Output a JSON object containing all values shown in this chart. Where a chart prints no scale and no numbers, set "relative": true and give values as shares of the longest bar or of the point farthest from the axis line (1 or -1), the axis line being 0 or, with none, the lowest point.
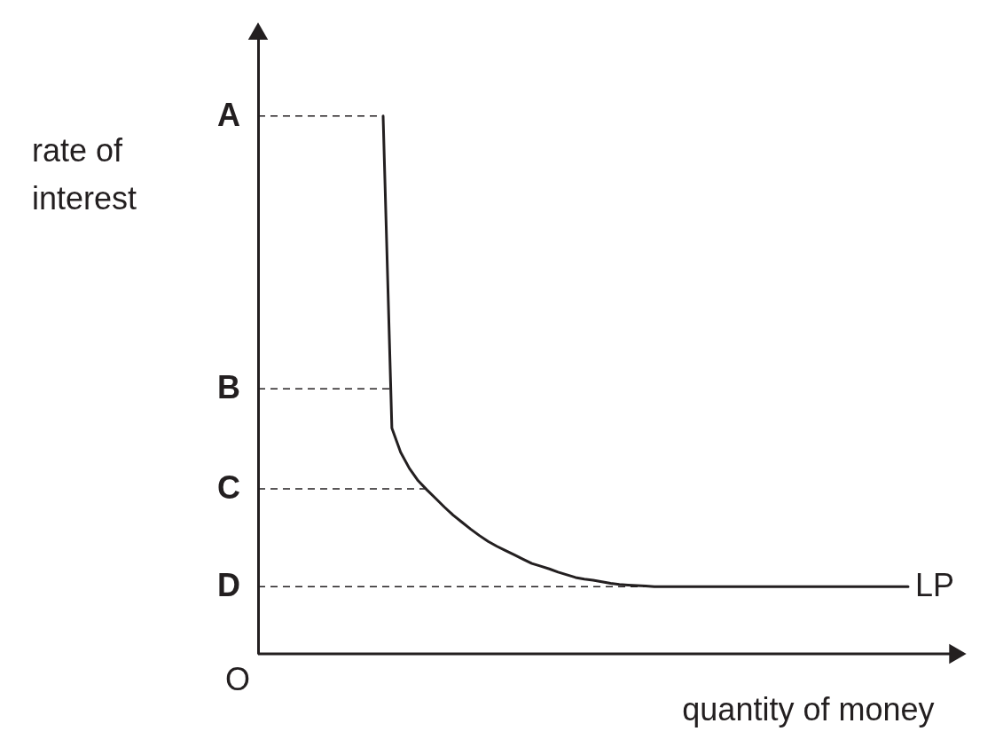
{
  "chart_data": {
    "type": "line",
    "relative": true,
    "xlabel": "quantity of money",
    "categories": [
      null,
      null,
      null,
      null,
      null,
      null,
      null,
      null,
      null,
      null,
      null,
      null,
      null,
      null,
      null,
      null,
      null,
      null,
      null,
      null,
      null,
      null,
      null,
      null,
      null,
      null,
      null,
      null,
      null,
      null,
      null,
      null,
      null,
      null,
      null,
      null,
      null,
      null,
      null,
      null,
      null,
      null,
      null,
      null,
      null,
      null,
      null,
      null,
      null,
      null,
      null,
      null,
      null,
      null,
      null,
      null,
      null,
      null,
      null,
      null,
      null
    ],
    "series": [
      {
        "name": "LP",
        "color": "#231f20",
        "values": [
          1,
          0.42,
          0.375,
          0.345,
          0.322,
          0.305,
          0.289,
          0.273,
          0.258,
          0.245,
          0.232,
          0.22,
          0.209,
          0.2,
          0.192,
          0.184,
          0.176,
          0.168,
          0.163,
          0.158,
          0.152,
          0.147,
          0.142,
          0.139,
          0.137,
          0.134,
          0.131,
          0.129,
          0.128,
          0.127,
          0.126,
          0.125,
          0.125,
          0.125,
          0.125,
          0.125,
          0.125,
          0.125,
          0.125,
          0.125,
          0.125,
          0.125,
          0.125,
          0.125,
          0.125,
          0.125,
          0.125,
          0.125,
          0.125,
          0.125,
          0.125,
          0.125,
          0.125,
          0.125,
          0.125,
          0.125,
          0.125,
          0.125,
          0.125,
          0.125,
          0.125
        ]
      }
    ],
    "ref_lines": [
      {
        "axis": "y",
        "value": 1,
        "label": "A",
        "line_style": "dashed"
      },
      {
        "axis": "y",
        "value": 0.493,
        "label": "B",
        "line_style": "dashed"
      },
      {
        "axis": "y",
        "value": 0.307,
        "label": "C",
        "line_style": "dashed"
      },
      {
        "axis": "y",
        "value": 0.125,
        "label": "D",
        "line_style": "dashed"
      }
    ],
    "annotations": [
      "O",
      "rate of\ninterest"
    ]
  }
}
